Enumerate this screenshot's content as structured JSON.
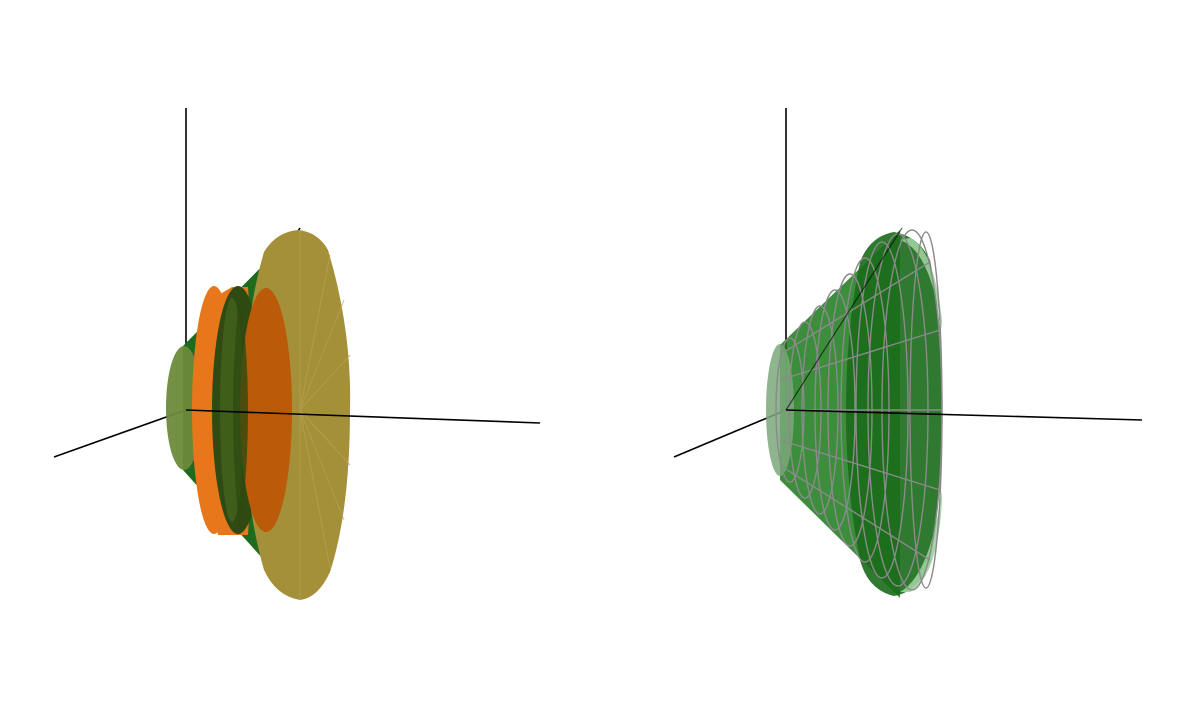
{
  "scene": {
    "views": [
      {
        "id": "left",
        "description_name": "solid-cone-with-inserts",
        "colors": {
          "cone_outer": "#a5903a",
          "cone_outer_light": "#b5a04a",
          "cone_side": "#1e6a1e",
          "cone_back_cap": "#6d8a3a",
          "ring_orange": "#e8761a",
          "ring_dark": "#2f4a12",
          "inner_disc": "#bb5a08",
          "axis": "#000000"
        }
      },
      {
        "id": "right",
        "description_name": "segmented-translucent-cone",
        "colors": {
          "shell_fill": "#1a7a1a",
          "shell_front": "#9fd09f",
          "shell_back": "#7aa87a",
          "grid_stroke": "#8a8a8a",
          "axis": "#000000"
        }
      }
    ]
  }
}
